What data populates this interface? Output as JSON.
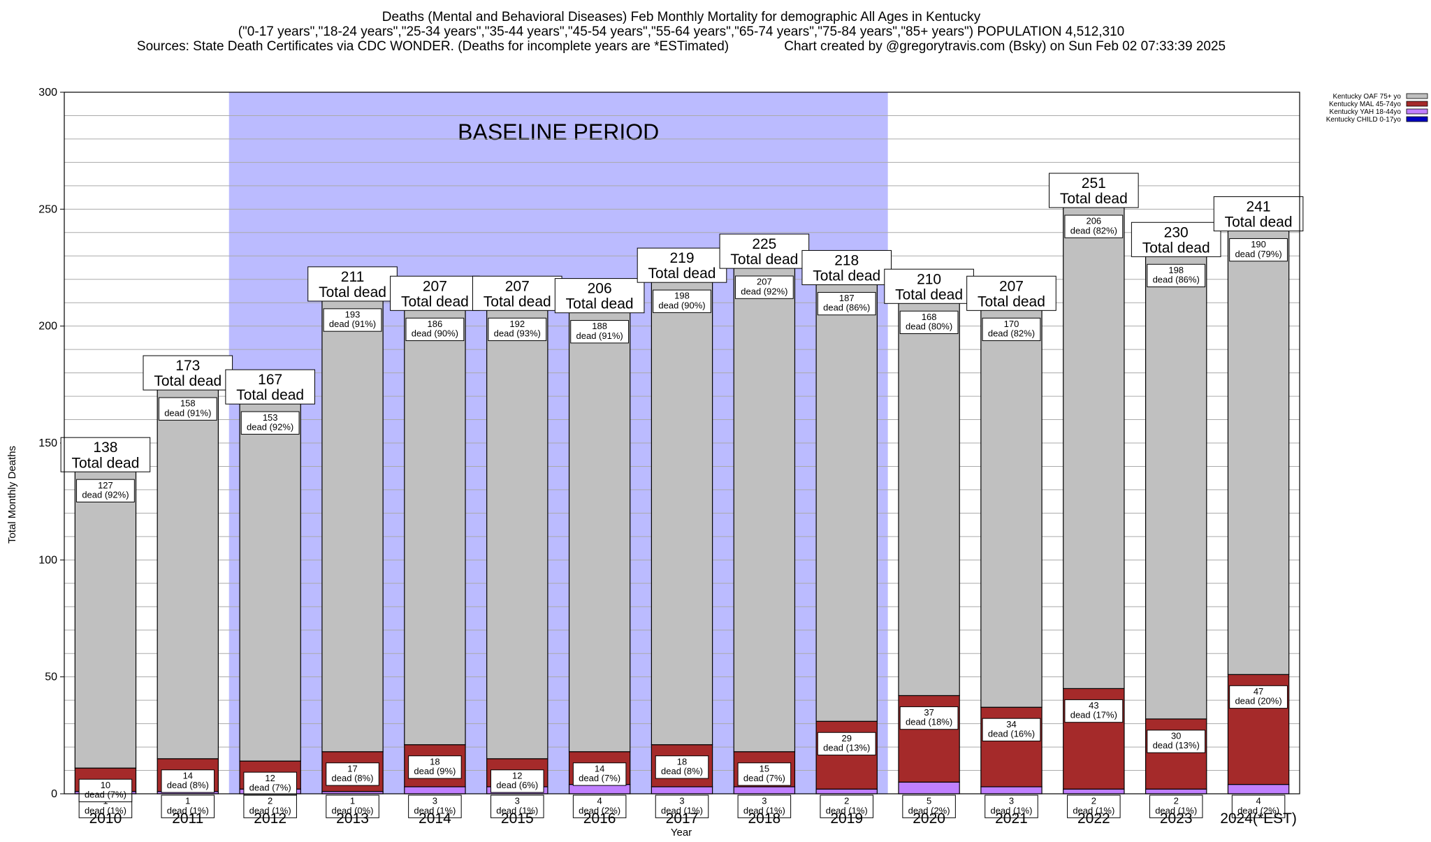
{
  "header": {
    "title_line1": "Deaths (Mental and Behavioral Diseases) Feb Monthly Mortality for demographic All Ages in Kentucky",
    "title_line2": "(\"0-17 years\",\"18-24 years\",\"25-34 years\",\"35-44 years\",\"45-54 years\",\"55-64 years\",\"65-74 years\",\"75-84 years\",\"85+ years\") POPULATION 4,512,310",
    "title_line3": "Sources: State Death Certificates via CDC WONDER. (Deaths for incomplete years are *ESTimated)               Chart created by @gregorytravis.com (Bsky) on Sun Feb 02 07:33:39 2025"
  },
  "colors": {
    "oaf": "#c0c0c0",
    "mal": "#a52a2a",
    "yah": "#c080ff",
    "child": "#0000c0",
    "baseline": "#bbbbff"
  },
  "chart_data": {
    "type": "bar",
    "stacked": true,
    "xlabel": "Year",
    "ylabel": "Total Monthly Deaths",
    "ylim": [
      0,
      300
    ],
    "yticks": [
      0,
      50,
      100,
      150,
      200,
      250,
      300
    ],
    "grid": true,
    "legend_position": "top-right",
    "categories": [
      "2010",
      "2011",
      "2012",
      "2013",
      "2014",
      "2015",
      "2016",
      "2017",
      "2018",
      "2019",
      "2020",
      "2021",
      "2022",
      "2023",
      "2024(*EST)"
    ],
    "baseline": {
      "label": "BASELINE PERIOD",
      "start": "2012",
      "end": "2019"
    },
    "total_label": "Total dead",
    "series": [
      {
        "name": "Kentucky CHILD 0-17yo",
        "key": "child",
        "values": [
          0,
          0,
          0,
          0,
          0,
          0,
          0,
          0,
          0,
          0,
          0,
          0,
          0,
          0,
          0
        ],
        "pct": []
      },
      {
        "name": "Kentucky YAH 18-44yo",
        "key": "yah",
        "values": [
          1,
          1,
          2,
          1,
          3,
          3,
          4,
          3,
          3,
          2,
          5,
          3,
          2,
          2,
          4
        ],
        "pct": [
          "1%",
          "1%",
          "1%",
          "0%",
          "1%",
          "1%",
          "2%",
          "1%",
          "1%",
          "1%",
          "2%",
          "1%",
          "1%",
          "1%",
          "2%"
        ]
      },
      {
        "name": "Kentucky MAL 45-74yo",
        "key": "mal",
        "values": [
          10,
          14,
          12,
          17,
          18,
          12,
          14,
          18,
          15,
          29,
          37,
          34,
          43,
          30,
          47
        ],
        "pct": [
          "7%",
          "8%",
          "7%",
          "8%",
          "9%",
          "6%",
          "7%",
          "8%",
          "7%",
          "13%",
          "18%",
          "16%",
          "17%",
          "13%",
          "20%"
        ]
      },
      {
        "name": "Kentucky OAF 75+ yo",
        "key": "oaf",
        "values": [
          127,
          158,
          153,
          193,
          186,
          192,
          188,
          198,
          207,
          187,
          168,
          170,
          206,
          198,
          190
        ],
        "pct": [
          "92%",
          "91%",
          "92%",
          "91%",
          "90%",
          "93%",
          "91%",
          "90%",
          "92%",
          "86%",
          "80%",
          "82%",
          "82%",
          "86%",
          "79%"
        ]
      }
    ],
    "totals": [
      138,
      173,
      167,
      211,
      207,
      207,
      206,
      219,
      225,
      218,
      210,
      207,
      251,
      230,
      241
    ]
  }
}
